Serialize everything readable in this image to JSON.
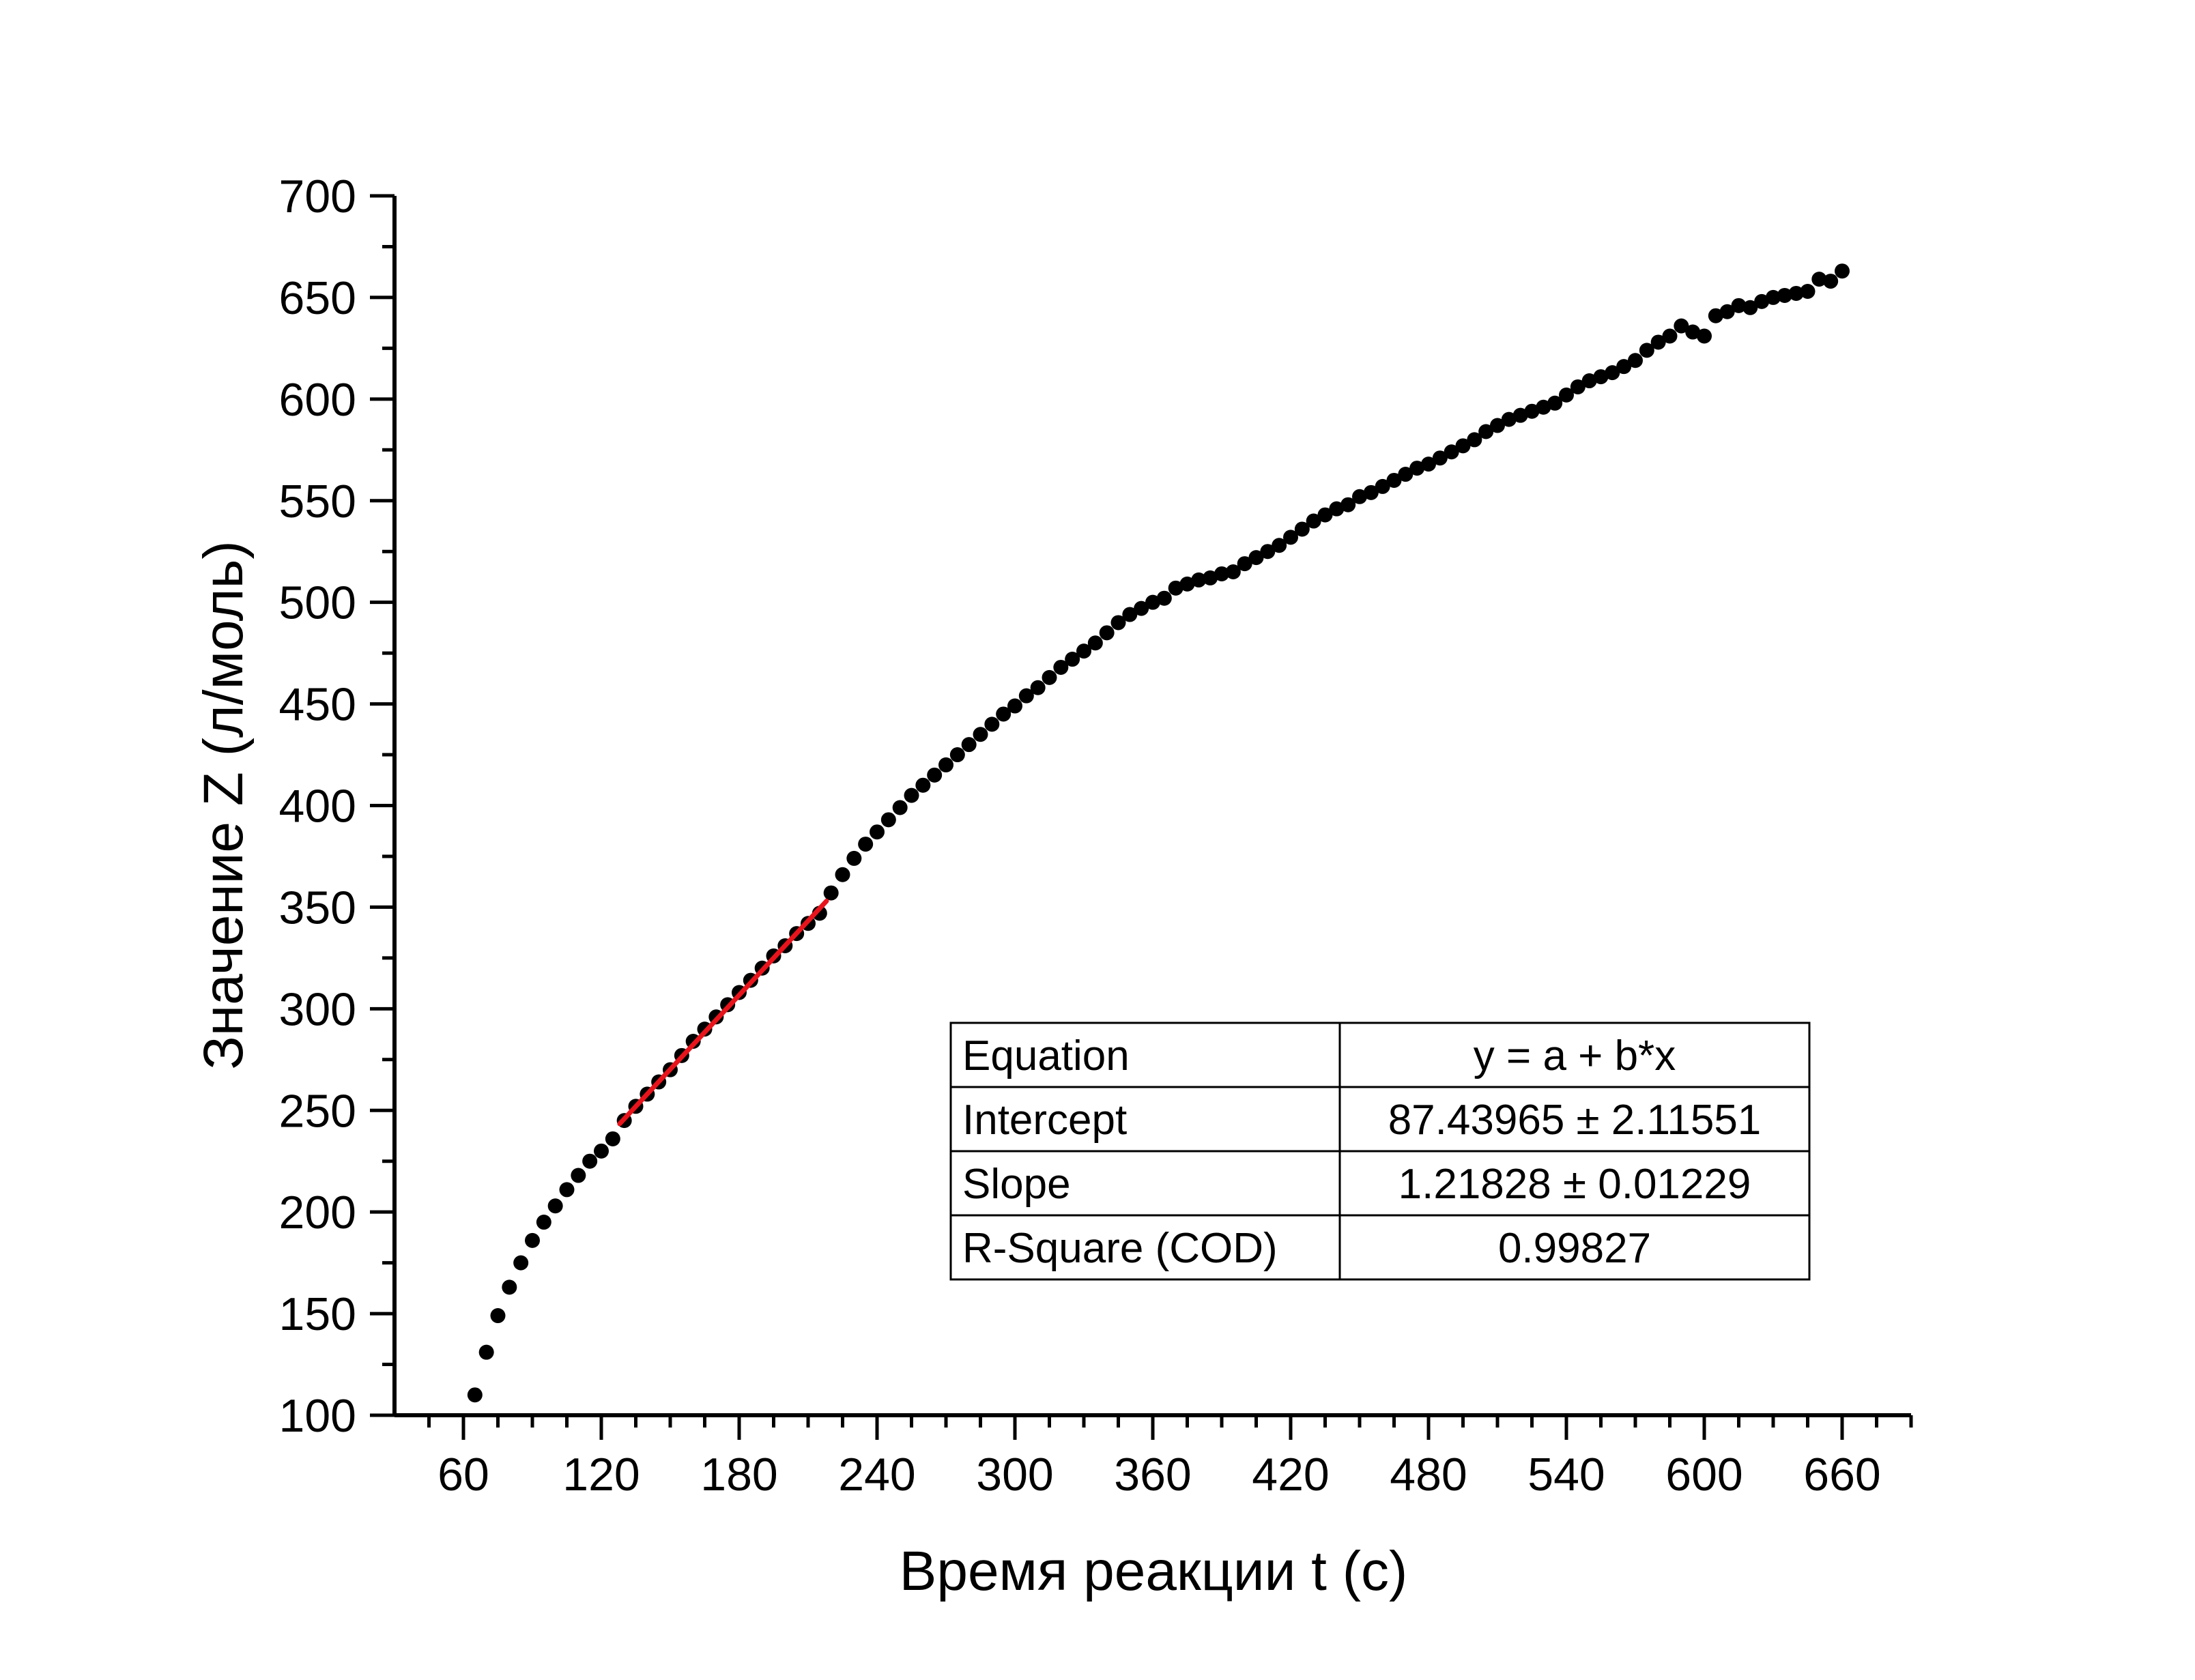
{
  "colors": {
    "points": "#000000",
    "fit_line": "#e8141c",
    "axes": "#000000",
    "background": "#ffffff"
  },
  "chart_data": {
    "type": "scatter",
    "title": "",
    "xlabel": "Время реакции t (с)",
    "ylabel": "Значение Z (л/моль)",
    "xlim": [
      30,
      690
    ],
    "ylim": [
      100,
      700
    ],
    "x_ticks": [
      60,
      120,
      180,
      240,
      300,
      360,
      420,
      480,
      540,
      600,
      660
    ],
    "y_ticks": [
      100,
      150,
      200,
      250,
      300,
      350,
      400,
      450,
      500,
      550,
      600,
      650,
      700
    ],
    "x_minor_step": 15,
    "y_minor_step": 25,
    "grid": false,
    "legend": "none",
    "series": [
      {
        "x": [
          65,
          70,
          75,
          80,
          85,
          90,
          95,
          100,
          105,
          110,
          115,
          120,
          125,
          130,
          135,
          140,
          145,
          150,
          155,
          160,
          165,
          170,
          175,
          180,
          185,
          190,
          195,
          200,
          205,
          210,
          215,
          220,
          225,
          230,
          235,
          240,
          245,
          250,
          255,
          260,
          265,
          270,
          275,
          280,
          285,
          290,
          295,
          300,
          305,
          310,
          315,
          320,
          325,
          330,
          335,
          340,
          345,
          350,
          355,
          360,
          365,
          370,
          375,
          380,
          385,
          390,
          395,
          400,
          405,
          410,
          415,
          420,
          425,
          430,
          435,
          440,
          445,
          450,
          455,
          460,
          465,
          470,
          475,
          480,
          485,
          490,
          495,
          500,
          505,
          510,
          515,
          520,
          525,
          530,
          535,
          540,
          545,
          550,
          555,
          560,
          565,
          570,
          575,
          580,
          585,
          590,
          595,
          600,
          605,
          610,
          615,
          620,
          625,
          630,
          635,
          640,
          645,
          650,
          655,
          660
        ],
        "y": [
          110,
          131,
          149,
          163,
          175,
          186,
          195,
          203,
          211,
          218,
          225,
          230,
          236,
          245,
          252,
          258,
          264,
          270,
          277,
          284,
          290,
          296,
          302,
          308,
          314,
          320,
          326,
          331,
          337,
          342,
          347,
          357,
          366,
          374,
          381,
          387,
          393,
          399,
          405,
          410,
          415,
          420,
          425,
          430,
          435,
          440,
          445,
          449,
          454,
          458,
          463,
          468,
          472,
          476,
          480,
          485,
          490,
          494,
          497,
          500,
          502,
          507,
          509,
          511,
          512,
          514,
          515,
          519,
          522,
          525,
          528,
          532,
          536,
          540,
          543,
          546,
          548,
          552,
          554,
          557,
          560,
          563,
          566,
          568,
          571,
          574,
          577,
          580,
          584,
          587,
          590,
          592,
          594,
          596,
          598,
          602,
          606,
          609,
          611,
          613,
          616,
          619,
          624,
          628,
          631,
          636,
          633,
          631,
          641,
          643,
          646,
          645,
          648,
          650,
          651,
          652,
          653,
          659,
          658,
          663
        ]
      }
    ],
    "fit_line": {
      "x": [
        128,
        218
      ],
      "y": [
        243.4,
        353.0
      ]
    },
    "fit_table": {
      "rows": [
        [
          "Equation",
          "y = a + b*x"
        ],
        [
          "Intercept",
          "87.43965 ± 2.11551"
        ],
        [
          "Slope",
          "1.21828 ± 0.01229"
        ],
        [
          "R-Square (COD)",
          "0.99827"
        ]
      ],
      "placement": "lower-right"
    }
  }
}
